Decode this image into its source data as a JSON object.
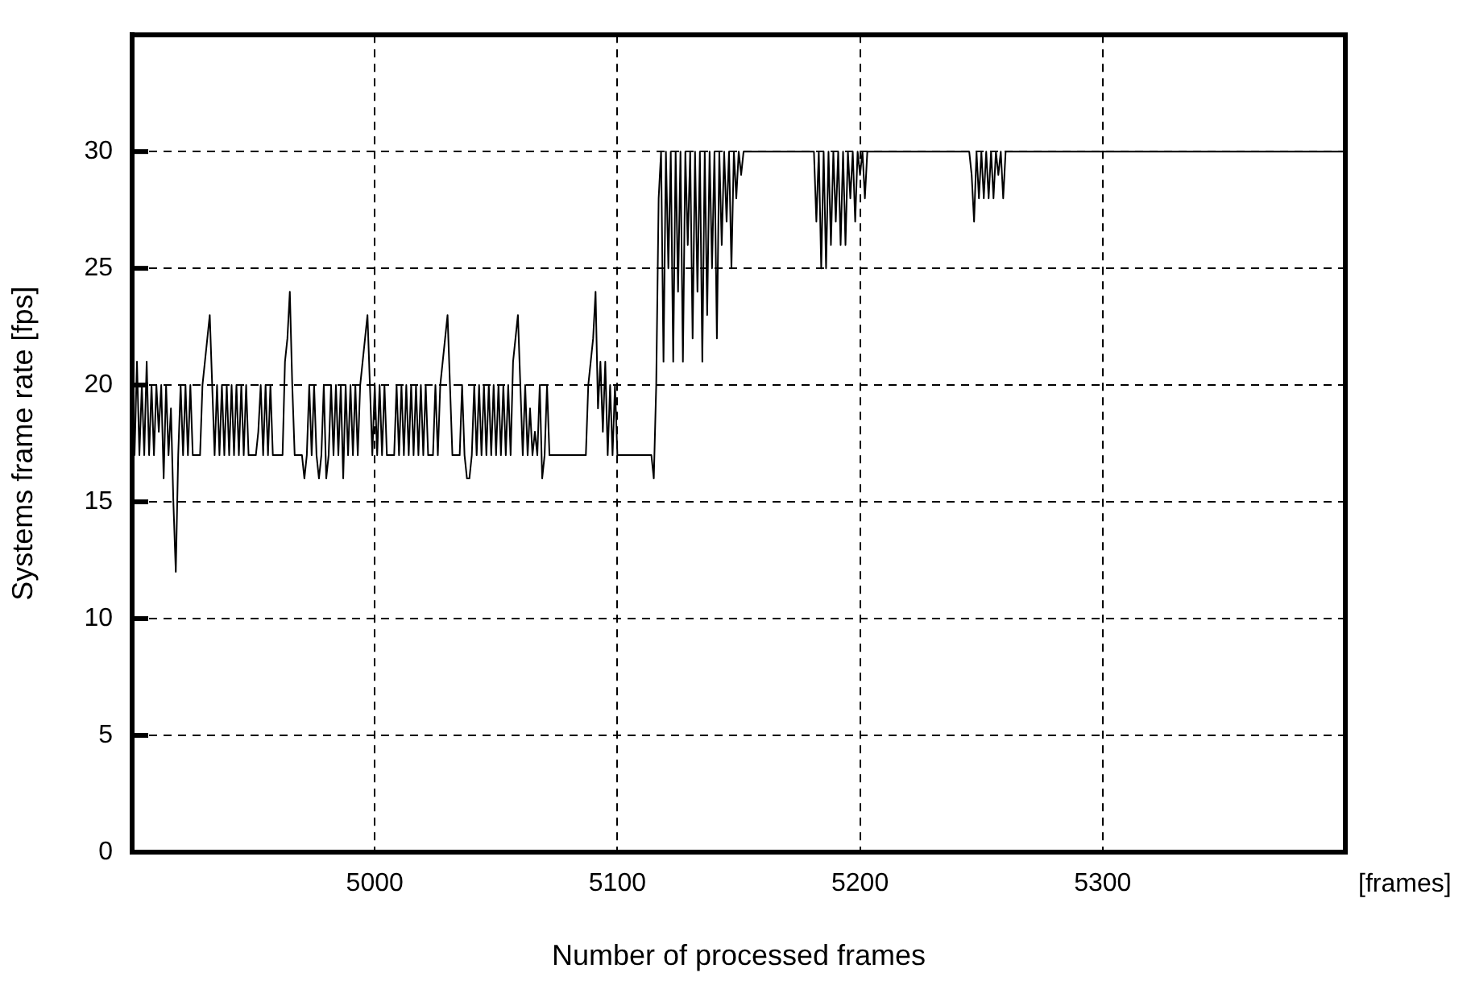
{
  "chart_data": {
    "type": "line",
    "xlabel": "Number of processed frames",
    "ylabel": "Systems frame rate [fps]",
    "annotations": [
      "[frames]"
    ],
    "xlim": [
      4900,
      5400
    ],
    "xticks": [
      5000,
      5100,
      5200,
      5300
    ],
    "ylim": [
      0,
      35
    ],
    "yticks": [
      0,
      5,
      10,
      15,
      20,
      25,
      30
    ],
    "grid": true,
    "marker": "none",
    "line_style": "solid",
    "series": [
      {
        "color": "#000000",
        "x": [
          4900,
          4901,
          4902,
          4903,
          4904,
          4905,
          4906,
          4907,
          4908,
          4909,
          4910,
          4911,
          4912,
          4913,
          4914,
          4915,
          4916,
          4917,
          4918,
          4919,
          4920,
          4921,
          4922,
          4923,
          4924,
          4925,
          4926,
          4928,
          4929,
          4930,
          4931,
          4932,
          4933,
          4934,
          4935,
          4936,
          4937,
          4938,
          4939,
          4940,
          4941,
          4942,
          4943,
          4944,
          4945,
          4946,
          4947,
          4948,
          4951,
          4952,
          4953,
          4954,
          4955,
          4956,
          4957,
          4958,
          4961,
          4962,
          4963,
          4964,
          4965,
          4966,
          4967,
          4970,
          4971,
          4972,
          4973,
          4974,
          4975,
          4976,
          4977,
          4978,
          4979,
          4980,
          4981,
          4982,
          4983,
          4984,
          4985,
          4986,
          4987,
          4988,
          4989,
          4990,
          4991,
          4992,
          4993,
          4994,
          4995,
          4996,
          4997,
          4998,
          4999,
          5000,
          5001,
          5002,
          5003,
          5004,
          5005,
          5008,
          5009,
          5010,
          5011,
          5012,
          5013,
          5014,
          5015,
          5016,
          5017,
          5018,
          5019,
          5020,
          5021,
          5022,
          5024,
          5025,
          5026,
          5027,
          5028,
          5029,
          5030,
          5031,
          5032,
          5035,
          5036,
          5037,
          5038,
          5039,
          5040,
          5041,
          5042,
          5043,
          5044,
          5045,
          5046,
          5047,
          5048,
          5049,
          5050,
          5051,
          5052,
          5053,
          5054,
          5055,
          5056,
          5057,
          5058,
          5059,
          5060,
          5061,
          5062,
          5063,
          5064,
          5065,
          5066,
          5067,
          5068,
          5069,
          5070,
          5071,
          5072,
          5087,
          5088,
          5089,
          5090,
          5091,
          5092,
          5093,
          5094,
          5095,
          5096,
          5097,
          5098,
          5099,
          5100,
          5114,
          5115,
          5116,
          5117,
          5118,
          5119,
          5120,
          5121,
          5122,
          5123,
          5124,
          5125,
          5126,
          5127,
          5128,
          5129,
          5130,
          5131,
          5132,
          5133,
          5134,
          5135,
          5136,
          5137,
          5138,
          5139,
          5140,
          5141,
          5142,
          5143,
          5144,
          5145,
          5146,
          5147,
          5148,
          5149,
          5150,
          5151,
          5152,
          5181,
          5182,
          5183,
          5184,
          5185,
          5186,
          5187,
          5188,
          5189,
          5190,
          5191,
          5192,
          5193,
          5194,
          5195,
          5196,
          5197,
          5198,
          5199,
          5200,
          5201,
          5202,
          5203,
          5245,
          5246,
          5247,
          5248,
          5249,
          5250,
          5251,
          5252,
          5253,
          5254,
          5255,
          5256,
          5257,
          5258,
          5259,
          5260,
          5262,
          5400
        ],
        "values": [
          20,
          17,
          21,
          17,
          20,
          17,
          21,
          17,
          20,
          17,
          20,
          18,
          20,
          16,
          20,
          17,
          19,
          15,
          12,
          17,
          20,
          17,
          20,
          17,
          20,
          17,
          17,
          17,
          20,
          21,
          22,
          23,
          20,
          17,
          20,
          17,
          20,
          17,
          20,
          17,
          20,
          17,
          20,
          17,
          20,
          17,
          20,
          17,
          17,
          18,
          20,
          17,
          20,
          17,
          20,
          17,
          17,
          17,
          21,
          22,
          24,
          20,
          17,
          17,
          16,
          17,
          20,
          17,
          20,
          17,
          16,
          17,
          20,
          16,
          17,
          20,
          17,
          20,
          17,
          20,
          16,
          20,
          17,
          20,
          17,
          20,
          17,
          20,
          21,
          22,
          23,
          20,
          17,
          20,
          17,
          20,
          17,
          20,
          17,
          17,
          20,
          17,
          20,
          17,
          20,
          17,
          20,
          17,
          20,
          17,
          20,
          17,
          20,
          17,
          17,
          20,
          17,
          20,
          21,
          22,
          23,
          20,
          17,
          17,
          20,
          17,
          16,
          16,
          17,
          20,
          17,
          20,
          17,
          20,
          17,
          20,
          17,
          20,
          17,
          20,
          17,
          20,
          17,
          20,
          17,
          21,
          22,
          23,
          20,
          17,
          20,
          17,
          19,
          17,
          18,
          17,
          20,
          16,
          17,
          20,
          17,
          17,
          20,
          21,
          22,
          24,
          19,
          21,
          18,
          21,
          17,
          20,
          17,
          20,
          17,
          17,
          16,
          20,
          28,
          30,
          21,
          30,
          25,
          30,
          21,
          30,
          24,
          30,
          21,
          30,
          26,
          30,
          22,
          30,
          24,
          30,
          21,
          30,
          23,
          30,
          25,
          30,
          22,
          30,
          26,
          30,
          27,
          30,
          25,
          30,
          28,
          30,
          29,
          30,
          30,
          27,
          30,
          25,
          30,
          25,
          30,
          26,
          30,
          27,
          30,
          26,
          30,
          26,
          30,
          28,
          30,
          27,
          30,
          29,
          30,
          28,
          30,
          30,
          29,
          27,
          30,
          28,
          30,
          28,
          30,
          28,
          30,
          28,
          30,
          29,
          30,
          28,
          30,
          30,
          30
        ]
      }
    ]
  }
}
